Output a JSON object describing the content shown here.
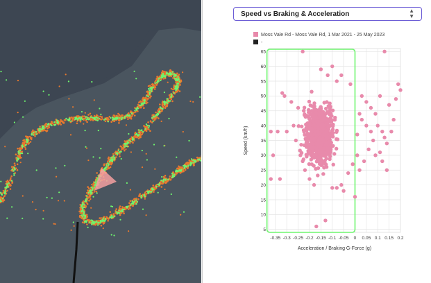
{
  "chart_selector": {
    "selected": "Speed vs Braking & Acceleration",
    "chevron_icon": "chevron-updown-icon"
  },
  "map": {
    "background_color": "#3d4652",
    "land_color": "#4e5a62",
    "route_color": "#e8792e",
    "accel_color": "#6ef56e",
    "arrow_color": "#f4a0a0"
  },
  "chart_data": {
    "type": "scatter",
    "legend": [
      {
        "name": "Moss Vale Rd - Moss Vale Rd, 1 Mar 2021 - 25 May 2023",
        "color": "#e88aab"
      },
      {
        "name": "-",
        "color": "#222222"
      }
    ],
    "xlabel": "Acceleration / Braking G-Force (g)",
    "ylabel": "Speed (km/h)",
    "xlim": [
      -0.38,
      0.2
    ],
    "ylim": [
      4,
      66
    ],
    "xticks": [
      -0.35,
      -0.3,
      -0.25,
      -0.2,
      -0.15,
      -0.1,
      -0.05,
      0,
      0.05,
      0.1,
      0.15,
      0.2
    ],
    "xtick_labels": [
      "-0.35",
      "-0.3",
      "-0.25",
      "-0.2",
      "-0.15",
      "-0.1",
      "-0.05",
      "0",
      "0.05",
      "0.1",
      "0.15",
      "0.2"
    ],
    "yticks": [
      5,
      10,
      15,
      20,
      25,
      30,
      35,
      40,
      45,
      50,
      55,
      60,
      65
    ],
    "ytick_labels": [
      "5",
      "10",
      "15",
      "20",
      "25",
      "30",
      "35",
      "40",
      "45",
      "50",
      "55",
      "60",
      "65"
    ],
    "highlight_range": {
      "x": [
        -0.375,
        0.0
      ],
      "y": [
        4,
        66
      ],
      "color": "#6ef56e"
    },
    "grid": true,
    "legend_position": "top-left",
    "series": [
      {
        "name": "Moss Vale Rd - Moss Vale Rd, 1 Mar 2021 - 25 May 2023",
        "color": "#e88aab",
        "points": [
          [
            -0.23,
            65
          ],
          [
            0.13,
            65
          ],
          [
            -0.13,
            8
          ],
          [
            -0.17,
            6
          ],
          [
            -0.37,
            38
          ],
          [
            -0.37,
            22
          ],
          [
            -0.36,
            30
          ],
          [
            -0.33,
            22
          ],
          [
            -0.32,
            51
          ],
          [
            -0.31,
            50
          ],
          [
            -0.3,
            38
          ],
          [
            -0.34,
            38
          ],
          [
            -0.1,
            60
          ],
          [
            -0.12,
            57
          ],
          [
            -0.15,
            59
          ],
          [
            -0.06,
            57
          ],
          [
            -0.08,
            55
          ],
          [
            -0.02,
            54
          ],
          [
            -0.28,
            48
          ],
          [
            -0.25,
            46
          ],
          [
            -0.27,
            40
          ],
          [
            -0.26,
            35
          ],
          [
            -0.24,
            30
          ],
          [
            -0.23,
            28
          ],
          [
            -0.22,
            25
          ],
          [
            -0.2,
            22
          ],
          [
            -0.18,
            20
          ],
          [
            -0.1,
            19
          ],
          [
            -0.08,
            19
          ],
          [
            -0.06,
            20
          ],
          [
            -0.05,
            18
          ],
          [
            -0.03,
            24
          ],
          [
            -0.01,
            27
          ],
          [
            0.0,
            16
          ],
          [
            0.01,
            30
          ],
          [
            0.01,
            37
          ],
          [
            0.02,
            44
          ],
          [
            0.03,
            50
          ],
          [
            0.05,
            48
          ],
          [
            0.07,
            46
          ],
          [
            0.09,
            44
          ],
          [
            0.1,
            40
          ],
          [
            0.12,
            38
          ],
          [
            0.13,
            36
          ],
          [
            0.14,
            34
          ],
          [
            0.16,
            38
          ],
          [
            0.17,
            42
          ],
          [
            0.19,
            54
          ],
          [
            0.2,
            52
          ],
          [
            0.18,
            49
          ],
          [
            0.15,
            47
          ],
          [
            0.11,
            50
          ],
          [
            0.08,
            35
          ],
          [
            0.06,
            32
          ],
          [
            0.04,
            28
          ],
          [
            0.02,
            25
          ],
          [
            0.09,
            30
          ],
          [
            0.12,
            28
          ],
          [
            0.14,
            25
          ],
          [
            0.11,
            31
          ],
          [
            0.05,
            40
          ],
          [
            0.07,
            38
          ],
          [
            0.03,
            42
          ]
        ]
      }
    ]
  }
}
